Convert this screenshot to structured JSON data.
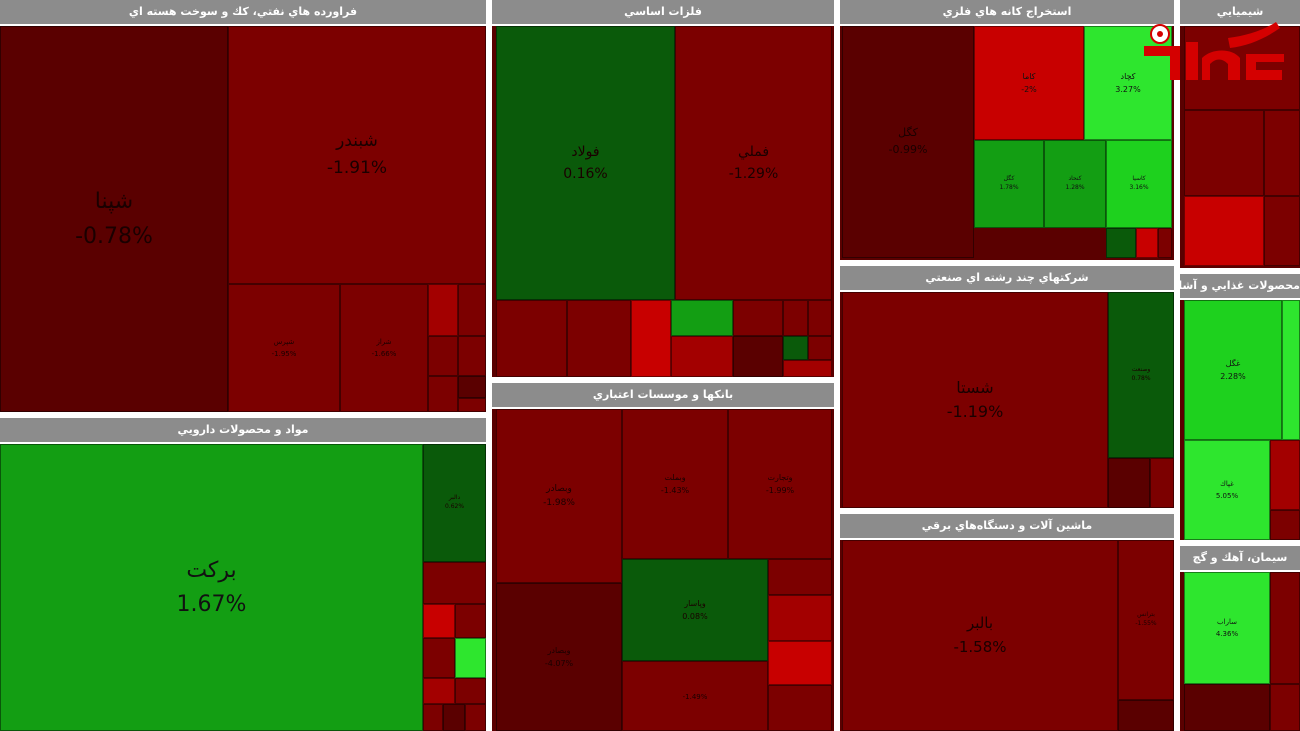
{
  "colors": {
    "deep_red": "#5a0000",
    "dark_red": "#7c0000",
    "red": "#a30000",
    "bright_red": "#c80000",
    "dark_green": "#0a5a0a",
    "green": "#139e13",
    "light_green": "#1ed11e",
    "bright_green": "#2ee62e",
    "header_gray": "#8c8c8c"
  },
  "logo": {
    "name": "rokna-logo",
    "text": "رکنا"
  },
  "chart_data": {
    "type": "heatmap",
    "sectors": [
      {
        "title": "فراورده هاي نفتي، كك و سوخت هسته اي",
        "stocks": [
          {
            "name": "شپنا",
            "change": "-0.78%"
          },
          {
            "name": "شبندر",
            "change": "-1.91%"
          },
          {
            "name": "شپرس",
            "change": "-1.95%"
          },
          {
            "name": "شراز",
            "change": "-1.66%"
          }
        ]
      },
      {
        "title": "مواد و محصولات دارويي",
        "stocks": [
          {
            "name": "بركت",
            "change": "1.67%"
          },
          {
            "name": "دالبر",
            "change": "0.62%"
          }
        ]
      },
      {
        "title": "فلزات اساسي",
        "stocks": [
          {
            "name": "فولاد",
            "change": "0.16%"
          },
          {
            "name": "فملي",
            "change": "-1.29%"
          }
        ]
      },
      {
        "title": "بانكها و موسسات اعتباري",
        "stocks": [
          {
            "name": "وبصادر",
            "change": "-1.98%"
          },
          {
            "name": "وبملت",
            "change": "-1.43%"
          },
          {
            "name": "وتجارت",
            "change": "-1.99%"
          },
          {
            "name": "وپاسار",
            "change": "0.08%"
          },
          {
            "name": "وبصادر",
            "change": "-4.07%"
          },
          {
            "name": "",
            "change": "-1.49%"
          }
        ]
      },
      {
        "title": "استخراج كانه هاي فلزي",
        "stocks": [
          {
            "name": "كگل",
            "change": "-0.99%"
          },
          {
            "name": "كاما",
            "change": "-2%"
          },
          {
            "name": "كچاد",
            "change": "3.27%"
          },
          {
            "name": "كگل",
            "change": "1.78%"
          },
          {
            "name": "كنحاد",
            "change": "1.28%"
          },
          {
            "name": "كاسيا",
            "change": "3.16%"
          }
        ]
      },
      {
        "title": "شركتهاي چند رشته اي صنعتي",
        "stocks": [
          {
            "name": "شستا",
            "change": "-1.19%"
          },
          {
            "name": "وصنعت",
            "change": "0.78%"
          }
        ]
      },
      {
        "title": "ماشين آلات و دستگاه‌هاي برقي",
        "stocks": [
          {
            "name": "بالبر",
            "change": "-1.58%"
          },
          {
            "name": "بترانس",
            "change": "-1.55%"
          }
        ]
      },
      {
        "title": "شيميايي",
        "stocks": []
      },
      {
        "title": "محصولات غذايي و آشام",
        "stocks": [
          {
            "name": "غگل",
            "change": "2.28%"
          },
          {
            "name": "غپاك",
            "change": "5.05%"
          }
        ]
      },
      {
        "title": "سيمان، آهك و گچ",
        "stocks": [
          {
            "name": "ساراب",
            "change": "4.36%"
          }
        ]
      }
    ]
  }
}
